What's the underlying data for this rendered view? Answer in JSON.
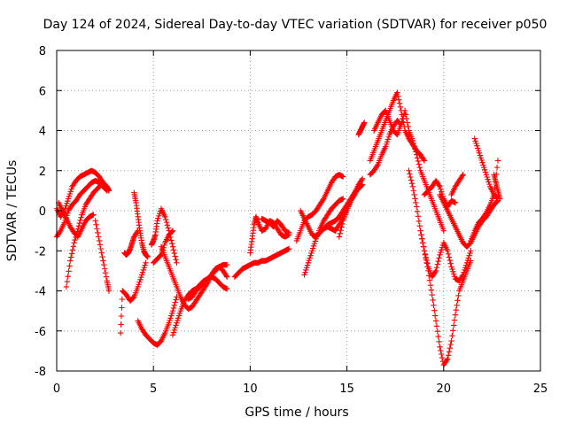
{
  "chart_data": {
    "type": "scatter",
    "title": "Day 124 of 2024, Sidereal Day-to-day VTEC variation (SDTVAR) for receiver p050",
    "xlabel": "GPS time / hours",
    "ylabel": "SDTVAR / TECUs",
    "xlim": [
      0,
      25
    ],
    "ylim": [
      -8,
      8
    ],
    "xticks": [
      0,
      5,
      10,
      15,
      20,
      25
    ],
    "yticks": [
      -8,
      -6,
      -4,
      -2,
      0,
      2,
      4,
      6,
      8
    ],
    "grid": true,
    "marker": "+",
    "color": "#ff0000",
    "series": [
      {
        "name": "trace-a",
        "x": [
          0.0,
          0.2,
          0.4,
          0.6,
          0.8,
          1.0,
          1.2,
          1.4,
          1.6,
          1.8,
          2.0,
          2.2,
          2.4,
          2.6,
          2.7
        ],
        "y": [
          0.1,
          -0.3,
          0.0,
          0.6,
          1.2,
          1.5,
          1.7,
          1.8,
          1.9,
          2.0,
          1.9,
          1.7,
          1.4,
          1.2,
          1.0
        ]
      },
      {
        "name": "trace-b",
        "x": [
          0.0,
          0.2,
          0.4,
          0.6,
          0.8,
          1.0,
          1.2,
          1.4,
          1.6,
          1.8,
          2.0,
          2.2,
          2.4,
          2.6
        ],
        "y": [
          -1.3,
          -1.0,
          -0.6,
          0.0,
          0.3,
          0.5,
          0.8,
          1.0,
          1.2,
          1.4,
          1.5,
          1.4,
          1.2,
          1.0
        ]
      },
      {
        "name": "trace-c",
        "x": [
          0.5,
          0.7,
          0.9,
          1.1,
          1.3,
          1.5,
          1.7,
          1.9,
          2.1,
          2.3
        ],
        "y": [
          -3.8,
          -2.5,
          -1.6,
          -0.9,
          -0.2,
          0.3,
          0.6,
          0.9,
          1.1,
          1.3
        ]
      },
      {
        "name": "trace-d",
        "x": [
          0.1,
          0.3,
          0.5,
          0.7,
          0.9,
          1.1,
          1.3,
          1.5,
          1.7,
          1.9
        ],
        "y": [
          0.4,
          0.0,
          -0.4,
          -0.8,
          -1.1,
          -1.3,
          -0.9,
          -0.5,
          -0.3,
          -0.2
        ]
      },
      {
        "name": "trace-e",
        "x": [
          2.0,
          2.2,
          2.4,
          2.6,
          2.7
        ],
        "y": [
          -0.5,
          -1.5,
          -2.5,
          -3.5,
          -4.0
        ]
      },
      {
        "name": "trace-f",
        "x": [
          3.3,
          3.4,
          3.6,
          3.8,
          4.0,
          4.2,
          4.4,
          4.6
        ],
        "y": [
          -6.1,
          -4.0,
          -4.2,
          -4.5,
          -4.3,
          -3.8,
          -3.2,
          -2.6
        ]
      },
      {
        "name": "trace-g",
        "x": [
          4.0,
          4.1,
          4.2,
          4.3,
          4.4,
          4.5,
          4.6,
          4.7
        ],
        "y": [
          0.9,
          0.4,
          -0.3,
          -1.0,
          -1.6,
          -2.0,
          -2.2,
          -2.3
        ]
      },
      {
        "name": "trace-h",
        "x": [
          3.5,
          3.6,
          3.7,
          3.8,
          3.9,
          4.0,
          4.2
        ],
        "y": [
          -2.1,
          -2.2,
          -2.1,
          -1.9,
          -1.6,
          -1.3,
          -1.0
        ]
      },
      {
        "name": "trace-i",
        "x": [
          4.2,
          4.4,
          4.6,
          4.8,
          5.0,
          5.2,
          5.4,
          5.6,
          5.8,
          6.0,
          6.2
        ],
        "y": [
          -5.5,
          -5.9,
          -6.2,
          -6.4,
          -6.6,
          -6.7,
          -6.5,
          -6.1,
          -5.6,
          -5.0,
          -4.3
        ]
      },
      {
        "name": "trace-j",
        "x": [
          4.9,
          5.0,
          5.1,
          5.2,
          5.4,
          5.6,
          5.8,
          6.0,
          6.2
        ],
        "y": [
          -1.7,
          -1.5,
          -1.2,
          -0.5,
          0.1,
          -0.3,
          -1.0,
          -1.8,
          -2.6
        ]
      },
      {
        "name": "trace-k",
        "x": [
          5.0,
          5.2,
          5.4,
          5.6,
          5.8,
          6.0
        ],
        "y": [
          -2.6,
          -2.4,
          -2.2,
          -1.6,
          -1.2,
          -1.0
        ]
      },
      {
        "name": "trace-l",
        "x": [
          5.4,
          5.6,
          5.8,
          6.0,
          6.2,
          6.4,
          6.6,
          6.8,
          7.0,
          7.2,
          7.4,
          7.6,
          7.8,
          8.0,
          8.2,
          8.4,
          8.6,
          8.8
        ],
        "y": [
          -1.8,
          -2.3,
          -2.8,
          -3.3,
          -3.8,
          -4.3,
          -4.7,
          -4.9,
          -4.8,
          -4.5,
          -4.2,
          -3.9,
          -3.6,
          -3.2,
          -2.9,
          -2.8,
          -3.0,
          -3.3
        ]
      },
      {
        "name": "trace-m",
        "x": [
          6.0,
          6.2,
          6.4,
          6.6,
          6.8,
          7.0,
          7.2,
          7.4,
          7.6,
          7.8,
          8.0,
          8.2,
          8.4,
          8.6,
          8.8
        ],
        "y": [
          -6.2,
          -5.6,
          -5.0,
          -4.5,
          -4.2,
          -4.0,
          -3.9,
          -3.7,
          -3.5,
          -3.4,
          -3.3,
          -3.4,
          -3.6,
          -3.8,
          -3.9
        ]
      },
      {
        "name": "trace-n",
        "x": [
          6.8,
          7.0,
          7.2,
          7.4,
          7.6,
          7.8,
          8.0,
          8.2,
          8.4,
          8.6,
          8.8
        ],
        "y": [
          -4.4,
          -4.3,
          -4.0,
          -3.8,
          -3.6,
          -3.4,
          -3.2,
          -3.0,
          -2.8,
          -2.7,
          -2.7
        ]
      },
      {
        "name": "trace-o",
        "x": [
          9.2,
          9.4,
          9.6,
          9.8,
          10.0,
          10.2,
          10.4,
          10.6,
          10.8,
          11.0,
          11.2,
          11.4,
          11.6,
          11.8,
          12.0
        ],
        "y": [
          -3.3,
          -3.1,
          -2.9,
          -2.8,
          -2.7,
          -2.6,
          -2.6,
          -2.5,
          -2.5,
          -2.4,
          -2.3,
          -2.2,
          -2.1,
          -2.0,
          -1.9
        ]
      },
      {
        "name": "trace-p",
        "x": [
          10.0,
          10.1,
          10.2,
          10.3,
          10.4,
          10.6,
          10.8,
          11.0,
          11.2,
          11.4,
          11.6,
          11.8,
          12.0
        ],
        "y": [
          -2.1,
          -1.4,
          -0.7,
          -0.3,
          -0.6,
          -1.0,
          -0.9,
          -0.5,
          -0.6,
          -0.9,
          -1.2,
          -1.3,
          -1.2
        ]
      },
      {
        "name": "trace-q",
        "x": [
          10.6,
          10.8,
          11.0,
          11.2,
          11.4,
          11.6,
          11.8,
          12.0
        ],
        "y": [
          -0.4,
          -0.5,
          -0.6,
          -0.8,
          -0.5,
          -0.7,
          -1.0,
          -1.1
        ]
      },
      {
        "name": "trace-r",
        "x": [
          12.4,
          12.6,
          12.8,
          13.0,
          13.2,
          13.4,
          13.6,
          13.8,
          14.0,
          14.2,
          14.4,
          14.6,
          14.8
        ],
        "y": [
          -1.5,
          -1.0,
          -0.5,
          -0.3,
          -0.2,
          0.0,
          0.3,
          0.6,
          1.0,
          1.4,
          1.7,
          1.8,
          1.7
        ]
      },
      {
        "name": "trace-s",
        "x": [
          12.8,
          13.0,
          13.2,
          13.4,
          13.6,
          13.8,
          14.0,
          14.2,
          14.4,
          14.6,
          14.8
        ],
        "y": [
          -3.2,
          -2.6,
          -2.0,
          -1.4,
          -0.9,
          -0.5,
          -0.2,
          0.1,
          0.3,
          0.5,
          0.6
        ]
      },
      {
        "name": "trace-t",
        "x": [
          12.6,
          12.8,
          13.0,
          13.2,
          13.4,
          13.6,
          13.8,
          14.0,
          14.2,
          14.4,
          14.6,
          14.8,
          15.0,
          15.2,
          15.4,
          15.6,
          15.8
        ],
        "y": [
          0.0,
          -0.4,
          -0.8,
          -1.2,
          -1.3,
          -1.1,
          -0.9,
          -0.8,
          -0.9,
          -1.0,
          -0.7,
          -0.3,
          0.1,
          0.5,
          0.9,
          1.3,
          1.6
        ]
      },
      {
        "name": "trace-u",
        "x": [
          13.8,
          14.0,
          14.2,
          14.4,
          14.6,
          14.8,
          15.0,
          15.2,
          15.4,
          15.6,
          15.8
        ],
        "y": [
          -0.9,
          -0.7,
          -0.6,
          -0.5,
          -0.3,
          0.0,
          0.3,
          0.6,
          0.9,
          1.1,
          1.3
        ]
      },
      {
        "name": "trace-v",
        "x": [
          14.6,
          14.8,
          15.0,
          15.2,
          15.4,
          15.6
        ],
        "y": [
          -1.3,
          -0.5,
          0.0,
          0.5,
          0.8,
          1.2
        ]
      },
      {
        "name": "trace-w",
        "x": [
          15.6,
          15.7,
          15.8,
          15.9
        ],
        "y": [
          3.8,
          4.0,
          4.2,
          4.4
        ]
      },
      {
        "name": "trace-x",
        "x": [
          16.2,
          16.4,
          16.6,
          16.8,
          17.0,
          17.2,
          17.4,
          17.6,
          17.8,
          18.0,
          18.2,
          18.4,
          18.6,
          18.8,
          19.0
        ],
        "y": [
          2.5,
          3.0,
          3.5,
          4.0,
          4.5,
          5.0,
          5.5,
          5.9,
          5.0,
          4.0,
          3.6,
          3.3,
          3.0,
          2.8,
          2.5
        ]
      },
      {
        "name": "trace-y",
        "x": [
          16.4,
          16.6,
          16.8,
          17.0,
          17.2,
          17.4,
          17.6,
          17.8,
          18.0,
          18.2,
          18.4,
          18.6,
          18.8,
          19.0,
          19.2,
          19.4,
          19.6,
          19.8,
          20.0
        ],
        "y": [
          4.0,
          4.4,
          4.8,
          5.0,
          4.5,
          4.0,
          3.8,
          4.3,
          5.0,
          4.0,
          3.5,
          2.8,
          2.0,
          1.5,
          1.0,
          0.5,
          0.0,
          -0.5,
          -1.0
        ]
      },
      {
        "name": "trace-z",
        "x": [
          16.2,
          16.4,
          16.6,
          16.8,
          17.0,
          17.2,
          17.4,
          17.6,
          17.8
        ],
        "y": [
          1.8,
          2.0,
          2.3,
          2.8,
          3.2,
          3.8,
          4.2,
          4.5,
          4.3
        ]
      },
      {
        "name": "trace-aa",
        "x": [
          18.2,
          18.4,
          18.6,
          18.8,
          19.0,
          19.2,
          19.4,
          19.6,
          19.8,
          20.0,
          20.2,
          20.4,
          20.6,
          20.8,
          21.0,
          21.2,
          21.4
        ],
        "y": [
          2.0,
          1.2,
          0.2,
          -1.0,
          -2.0,
          -3.0,
          -4.2,
          -5.5,
          -6.8,
          -7.7,
          -7.4,
          -6.5,
          -5.2,
          -4.0,
          -3.5,
          -3.0,
          -2.5
        ]
      },
      {
        "name": "trace-ab",
        "x": [
          18.8,
          19.0,
          19.2,
          19.4,
          19.6,
          19.8,
          20.0,
          20.2,
          20.4,
          20.6,
          20.8,
          21.0,
          21.2,
          21.4
        ],
        "y": [
          -1.0,
          -2.0,
          -2.8,
          -3.3,
          -3.0,
          -2.2,
          -1.6,
          -2.0,
          -2.8,
          -3.4,
          -3.5,
          -3.2,
          -2.6,
          -2.0
        ]
      },
      {
        "name": "trace-ac",
        "x": [
          19.8,
          20.0,
          20.2,
          20.4,
          20.6,
          20.8,
          21.0,
          21.2,
          21.4,
          21.6,
          21.8,
          22.0,
          22.2,
          22.4,
          22.6,
          22.8
        ],
        "y": [
          0.8,
          0.4,
          0.0,
          -0.4,
          -0.8,
          -1.2,
          -1.6,
          -1.8,
          -1.6,
          -1.2,
          -0.8,
          -0.5,
          -0.3,
          0.0,
          0.3,
          0.5
        ]
      },
      {
        "name": "trace-ad",
        "x": [
          19.0,
          19.2,
          19.4,
          19.6,
          19.8,
          20.0,
          20.2,
          20.4,
          20.6
        ],
        "y": [
          0.8,
          1.0,
          1.2,
          1.5,
          1.2,
          0.6,
          0.2,
          0.5,
          0.4
        ]
      },
      {
        "name": "trace-ae",
        "x": [
          20.4,
          20.6,
          20.8,
          21.0
        ],
        "y": [
          0.8,
          1.2,
          1.5,
          1.8
        ]
      },
      {
        "name": "trace-af",
        "x": [
          21.6,
          21.8,
          22.0,
          22.2,
          22.4,
          22.6,
          22.8
        ],
        "y": [
          3.6,
          3.0,
          2.4,
          1.8,
          1.2,
          0.8,
          0.6
        ]
      },
      {
        "name": "trace-ag",
        "x": [
          21.4,
          21.6,
          21.8,
          22.0,
          22.2,
          22.4,
          22.6,
          22.8
        ],
        "y": [
          -1.5,
          -1.0,
          -0.6,
          -0.4,
          -0.1,
          0.3,
          0.8,
          2.5
        ]
      },
      {
        "name": "trace-ah",
        "x": [
          22.6,
          22.7,
          22.8,
          22.9
        ],
        "y": [
          1.8,
          1.4,
          1.0,
          0.6
        ]
      }
    ]
  }
}
